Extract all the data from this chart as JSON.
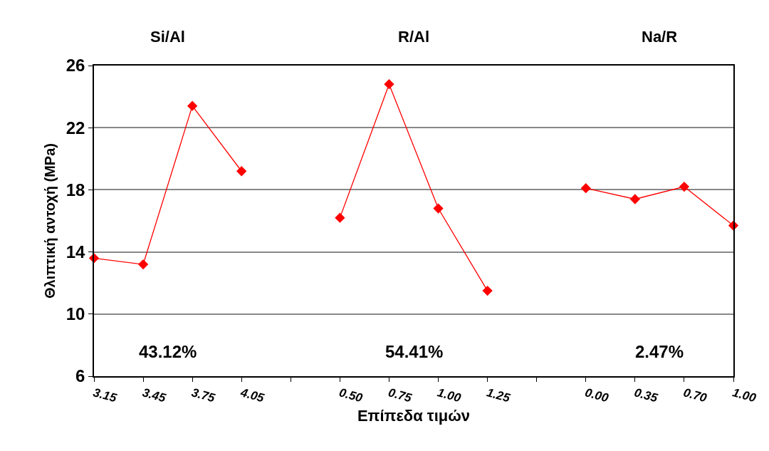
{
  "chart_data": {
    "type": "line",
    "xlabel": "Επίπεδα τιμών",
    "ylabel": "Θλιπτική αντοχή (MPa)",
    "categories": [
      "3.15",
      "3.45",
      "3.75",
      "4.05",
      null,
      "0.50",
      "0.75",
      "1.00",
      "1.25",
      null,
      "0.00",
      "0.35",
      "0.70",
      "1.00"
    ],
    "series": [
      {
        "color": "#ff0000",
        "values": [
          13.6,
          13.2,
          23.4,
          19.2,
          null,
          16.2,
          24.8,
          16.8,
          11.5,
          null,
          18.1,
          17.4,
          18.2,
          15.7
        ]
      }
    ],
    "annotations": [
      "Si/Al",
      "R/Al",
      "Na/R",
      "43.12%",
      "54.41%",
      "2.47%"
    ],
    "ylim": [
      6,
      26
    ],
    "yticks": [
      6,
      10,
      14,
      18,
      22,
      26
    ],
    "grid": "y",
    "marker": "diamond",
    "line_style": "solid"
  }
}
